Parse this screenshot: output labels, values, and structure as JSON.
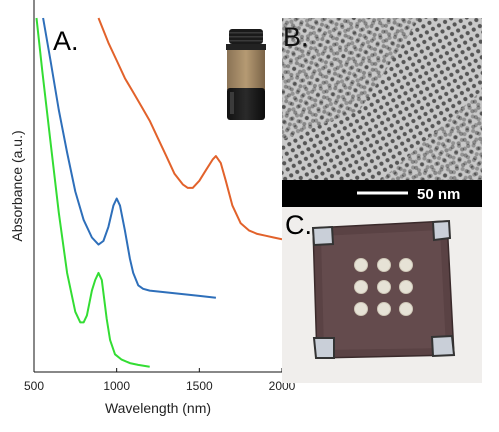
{
  "panels": {
    "a_label": "A.",
    "b_label": "B.",
    "c_label": "C."
  },
  "tem": {
    "scale_bar_label": "50 nm"
  },
  "chart_data": {
    "type": "line",
    "xlabel": "Wavelength (nm)",
    "ylabel": "Absorbance (a.u.)",
    "xlim": [
      500,
      2000
    ],
    "xticks": [
      500,
      1000,
      1500,
      2000
    ],
    "ylim": [
      0,
      1
    ],
    "yticks_shown": false,
    "grid": false,
    "series": [
      {
        "color": "#e2622b",
        "x": [
          890,
          950,
          1000,
          1050,
          1100,
          1150,
          1200,
          1250,
          1300,
          1350,
          1400,
          1430,
          1460,
          1500,
          1540,
          1580,
          1600,
          1630,
          1660,
          1700,
          1750,
          1800,
          1850,
          1900,
          1950,
          2000
        ],
        "y": [
          1.0,
          0.93,
          0.88,
          0.83,
          0.79,
          0.75,
          0.71,
          0.66,
          0.61,
          0.56,
          0.53,
          0.52,
          0.52,
          0.54,
          0.57,
          0.6,
          0.61,
          0.59,
          0.54,
          0.47,
          0.42,
          0.4,
          0.39,
          0.385,
          0.38,
          0.375
        ]
      },
      {
        "color": "#2e6fba",
        "x": [
          555,
          600,
          650,
          700,
          750,
          800,
          850,
          890,
          920,
          950,
          980,
          1000,
          1020,
          1050,
          1080,
          1100,
          1130,
          1160,
          1200,
          1300,
          1400,
          1500,
          1600
        ],
        "y": [
          1.0,
          0.88,
          0.74,
          0.62,
          0.51,
          0.43,
          0.38,
          0.36,
          0.37,
          0.41,
          0.47,
          0.49,
          0.47,
          0.4,
          0.32,
          0.28,
          0.245,
          0.235,
          0.23,
          0.225,
          0.22,
          0.215,
          0.21
        ]
      },
      {
        "color": "#33dd33",
        "x": [
          515,
          550,
          600,
          650,
          700,
          750,
          780,
          800,
          820,
          850,
          870,
          890,
          910,
          940,
          960,
          990,
          1030,
          1080,
          1130,
          1200
        ],
        "y": [
          1.0,
          0.85,
          0.65,
          0.45,
          0.28,
          0.17,
          0.14,
          0.14,
          0.16,
          0.23,
          0.26,
          0.28,
          0.26,
          0.15,
          0.09,
          0.05,
          0.035,
          0.025,
          0.02,
          0.015
        ]
      }
    ]
  }
}
